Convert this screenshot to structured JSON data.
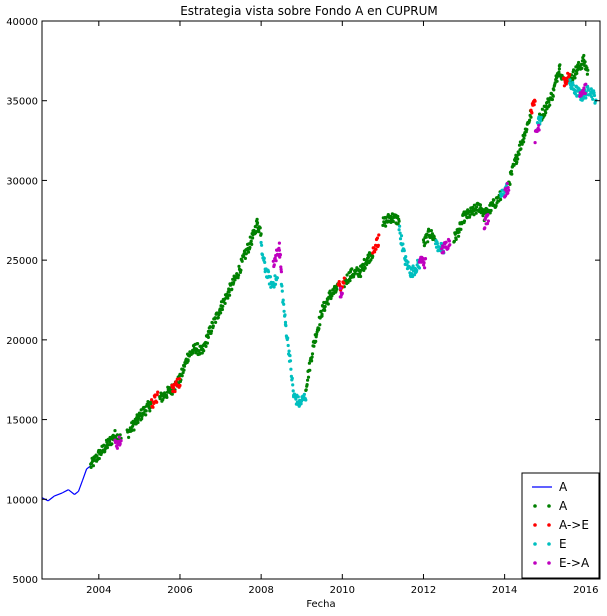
{
  "chart_data": {
    "type": "line",
    "title": "Estrategia vista sobre Fondo A en CUPRUM",
    "xlabel": "Fecha",
    "ylabel": "",
    "xlim": [
      2002.6,
      2016.35
    ],
    "ylim": [
      5000,
      40000
    ],
    "x_ticks": [
      2004,
      2006,
      2008,
      2010,
      2012,
      2014,
      2016
    ],
    "y_ticks": [
      5000,
      10000,
      15000,
      20000,
      25000,
      30000,
      35000,
      40000
    ],
    "legend_position": "lower-right",
    "grid": false,
    "series": [
      {
        "name": "A",
        "style": "line",
        "color": "#0000ff",
        "points": [
          [
            2002.6,
            10100
          ],
          [
            2002.75,
            9900
          ],
          [
            2002.9,
            10200
          ],
          [
            2003.1,
            10400
          ],
          [
            2003.25,
            10600
          ],
          [
            2003.4,
            10300
          ],
          [
            2003.5,
            10500
          ],
          [
            2003.6,
            11200
          ],
          [
            2003.7,
            11900
          ],
          [
            2003.8,
            12100
          ]
        ]
      },
      {
        "name": "A",
        "style": "points",
        "color": "#008000",
        "segments": [
          [
            [
              2003.8,
              12100
            ],
            [
              2004.0,
              12800
            ],
            [
              2004.2,
              13400
            ],
            [
              2004.4,
              14000
            ],
            [
              2004.55,
              13800
            ]
          ],
          [
            [
              2004.7,
              14100
            ],
            [
              2004.9,
              14800
            ],
            [
              2005.1,
              15500
            ],
            [
              2005.3,
              16000
            ]
          ],
          [
            [
              2005.5,
              16300
            ],
            [
              2005.8,
              16900
            ],
            [
              2006.0,
              17500
            ],
            [
              2006.2,
              19000
            ],
            [
              2006.4,
              19500
            ],
            [
              2006.55,
              19200
            ],
            [
              2006.7,
              20300
            ],
            [
              2007.0,
              22000
            ],
            [
              2007.2,
              23000
            ],
            [
              2007.4,
              24000
            ],
            [
              2007.6,
              25300
            ],
            [
              2007.8,
              26500
            ],
            [
              2007.9,
              27300
            ],
            [
              2008.0,
              26800
            ]
          ],
          [
            [
              2009.1,
              17000
            ],
            [
              2009.3,
              19800
            ],
            [
              2009.5,
              21800
            ],
            [
              2009.7,
              22800
            ],
            [
              2009.9,
              23200
            ]
          ],
          [
            [
              2010.05,
              23600
            ],
            [
              2010.2,
              24100
            ],
            [
              2010.45,
              24300
            ],
            [
              2010.6,
              25000
            ],
            [
              2010.75,
              25500
            ]
          ],
          [
            [
              2011.0,
              27300
            ],
            [
              2011.2,
              27700
            ],
            [
              2011.4,
              27500
            ]
          ],
          [
            [
              2012.0,
              26000
            ],
            [
              2012.15,
              26700
            ],
            [
              2012.3,
              26300
            ]
          ],
          [
            [
              2012.75,
              26300
            ],
            [
              2012.9,
              27000
            ],
            [
              2013.0,
              27700
            ],
            [
              2013.2,
              28000
            ],
            [
              2013.4,
              28400
            ],
            [
              2013.5,
              27800
            ],
            [
              2013.7,
              28400
            ],
            [
              2013.9,
              29000
            ]
          ],
          [
            [
              2014.1,
              29800
            ],
            [
              2014.3,
              31500
            ],
            [
              2014.5,
              33000
            ],
            [
              2014.65,
              34200
            ]
          ],
          [
            [
              2014.85,
              33800
            ],
            [
              2015.0,
              34500
            ],
            [
              2015.2,
              35500
            ],
            [
              2015.35,
              37200
            ],
            [
              2015.45,
              36200
            ]
          ],
          [
            [
              2015.6,
              36300
            ],
            [
              2015.8,
              37000
            ],
            [
              2015.95,
              37500
            ],
            [
              2016.05,
              36800
            ]
          ]
        ]
      },
      {
        "name": "A->E",
        "style": "points",
        "color": "#ff0000",
        "segments": [
          [
            [
              2005.3,
              16000
            ],
            [
              2005.45,
              16400
            ]
          ],
          [
            [
              2005.8,
              16900
            ],
            [
              2006.0,
              17400
            ]
          ],
          [
            [
              2009.9,
              23300
            ],
            [
              2010.05,
              23700
            ]
          ],
          [
            [
              2010.75,
              25600
            ],
            [
              2010.9,
              26300
            ]
          ],
          [
            [
              2014.65,
              34300
            ],
            [
              2014.75,
              34800
            ]
          ],
          [
            [
              2015.45,
              36200
            ],
            [
              2015.6,
              36500
            ]
          ]
        ]
      },
      {
        "name": "E",
        "style": "points",
        "color": "#00bfbf",
        "segments": [
          [
            [
              2008.0,
              25800
            ],
            [
              2008.1,
              24500
            ],
            [
              2008.25,
              23500
            ],
            [
              2008.4,
              23800
            ]
          ],
          [
            [
              2008.5,
              23500
            ],
            [
              2008.6,
              21000
            ],
            [
              2008.7,
              19000
            ],
            [
              2008.8,
              16500
            ],
            [
              2008.95,
              16000
            ],
            [
              2009.1,
              16500
            ]
          ],
          [
            [
              2011.4,
              27000
            ],
            [
              2011.55,
              25000
            ],
            [
              2011.7,
              24200
            ],
            [
              2011.9,
              24800
            ]
          ],
          [
            [
              2012.3,
              26000
            ],
            [
              2012.5,
              25600
            ]
          ],
          [
            [
              2013.9,
              29000
            ],
            [
              2014.05,
              29500
            ]
          ],
          [
            [
              2014.8,
              33500
            ],
            [
              2014.9,
              34000
            ]
          ],
          [
            [
              2015.6,
              36000
            ],
            [
              2015.9,
              35300
            ],
            [
              2016.1,
              35700
            ],
            [
              2016.25,
              35100
            ]
          ]
        ]
      },
      {
        "name": "E->A",
        "style": "points",
        "color": "#bf00bf",
        "segments": [
          [
            [
              2004.4,
              13400
            ],
            [
              2004.55,
              13700
            ]
          ],
          [
            [
              2008.3,
              24800
            ],
            [
              2008.45,
              25800
            ],
            [
              2008.5,
              24200
            ]
          ],
          [
            [
              2009.95,
              23000
            ],
            [
              2010.0,
              22600
            ]
          ],
          [
            [
              2011.9,
              25100
            ],
            [
              2012.05,
              24800
            ]
          ],
          [
            [
              2012.45,
              25600
            ],
            [
              2012.65,
              26200
            ]
          ],
          [
            [
              2013.5,
              27300
            ],
            [
              2013.6,
              27700
            ]
          ],
          [
            [
              2014.0,
              29300
            ],
            [
              2014.1,
              29600
            ]
          ],
          [
            [
              2014.75,
              32700
            ],
            [
              2014.85,
              33500
            ]
          ],
          [
            [
              2015.85,
              35500
            ],
            [
              2016.0,
              35800
            ]
          ]
        ]
      }
    ]
  }
}
